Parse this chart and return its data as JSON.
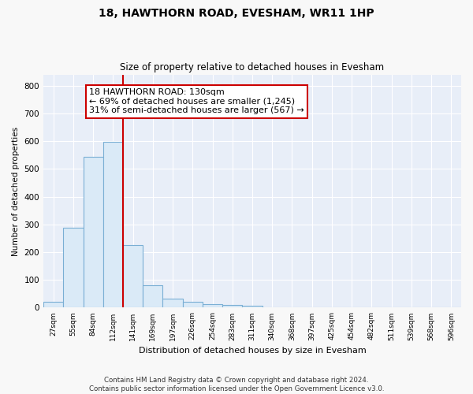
{
  "title": "18, HAWTHORN ROAD, EVESHAM, WR11 1HP",
  "subtitle": "Size of property relative to detached houses in Evesham",
  "xlabel": "Distribution of detached houses by size in Evesham",
  "ylabel": "Number of detached properties",
  "bar_color": "#daeaf7",
  "bar_edge_color": "#7aafd4",
  "categories": [
    "27sqm",
    "55sqm",
    "84sqm",
    "112sqm",
    "141sqm",
    "169sqm",
    "197sqm",
    "226sqm",
    "254sqm",
    "283sqm",
    "311sqm",
    "340sqm",
    "368sqm",
    "397sqm",
    "425sqm",
    "454sqm",
    "482sqm",
    "511sqm",
    "539sqm",
    "568sqm",
    "596sqm"
  ],
  "values": [
    22,
    288,
    543,
    598,
    225,
    80,
    33,
    22,
    12,
    10,
    7,
    0,
    0,
    0,
    0,
    0,
    0,
    0,
    0,
    0,
    0
  ],
  "vline_pos": 3.5,
  "vline_color": "#cc0000",
  "annotation_line1": "18 HAWTHORN ROAD: 130sqm",
  "annotation_line2": "← 69% of detached houses are smaller (1,245)",
  "annotation_line3": "31% of semi-detached houses are larger (567) →",
  "annotation_box_color": "#ffffff",
  "annotation_box_edge": "#cc0000",
  "ylim": [
    0,
    840
  ],
  "yticks": [
    0,
    100,
    200,
    300,
    400,
    500,
    600,
    700,
    800
  ],
  "plot_bg_color": "#e8eef8",
  "grid_color": "#ffffff",
  "fig_bg_color": "#f8f8f8",
  "footer": "Contains HM Land Registry data © Crown copyright and database right 2024.\nContains public sector information licensed under the Open Government Licence v3.0."
}
